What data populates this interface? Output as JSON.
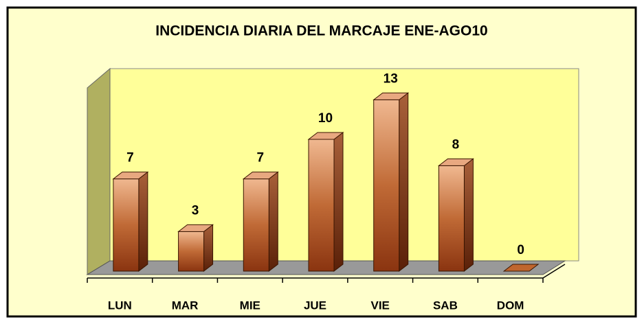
{
  "chart_data": {
    "type": "bar3d",
    "title": "INCIDENCIA DIARIA DEL MARCAJE ENE-AGO10",
    "categories": [
      "LUN",
      "MAR",
      "MIE",
      "JUE",
      "VIE",
      "SAB",
      "DOM"
    ],
    "values": [
      7,
      3,
      7,
      10,
      13,
      8,
      0
    ],
    "color": "#c0662e"
  }
}
